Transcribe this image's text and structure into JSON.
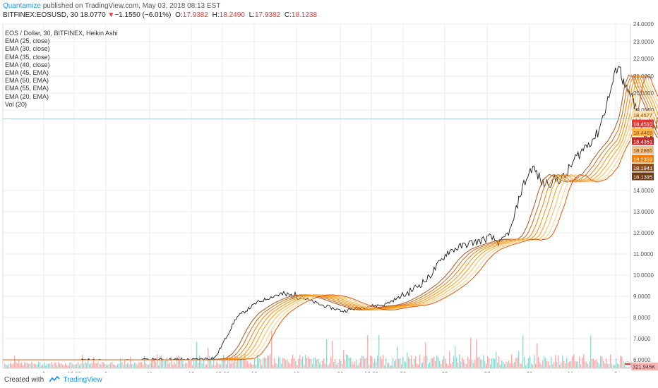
{
  "header": {
    "author": "Quantamize",
    "published": "published on TradingView.com, May 03, 2018 08:13 EST",
    "symbol": "BITFINEX:EOSUSD, 30",
    "last": "18.0770",
    "change_arrow": "▼",
    "change": "−1.1550 (−6.01%)",
    "o_label": "O:",
    "o_value": "17.9382",
    "h_label": "H:",
    "h_value": "18.2490",
    "l_label": "L:",
    "l_value": "17.9382",
    "c_label": "C:",
    "c_value": "18.1238"
  },
  "legend": [
    "EOS / Dollar, 30, BITFINEX, Heikin Ashi",
    "EMA (25, close)",
    "EMA (30, close)",
    "EMA (35, close)",
    "EMA (40, close)",
    "EMA (45, EMA)",
    "EMA (50, EMA)",
    "EMA (55, EMA)",
    "EMA (20, EMA)",
    "Vol (20)"
  ],
  "footer": {
    "created_with": "Created with",
    "brand": "TradingView"
  },
  "colors": {
    "up": "#26a69a",
    "down": "#ef5350",
    "ema_dark": "#8d3b0f",
    "ema_orange": "#f57c00",
    "ema_light": "#ffb74d",
    "price_line": "#4a8fa3"
  },
  "chart_data": {
    "type": "line",
    "title": "EOS / Dollar, 30, BITFINEX, Heikin Ashi",
    "x_ticks": [
      "6",
      "12:00",
      "9",
      "11",
      "13",
      "12:00",
      "16",
      "18",
      "20",
      "12:00",
      "23",
      "25",
      "27",
      "29",
      "May",
      "3"
    ],
    "y_ticks": [
      "24.0000",
      "23.0000",
      "22.0000",
      "21.0000",
      "20.0000",
      "19.0000",
      "14.0000",
      "13.0000",
      "12.0000",
      "11.0000",
      "10.0000",
      "9.0000",
      "8.0000",
      "7.0000",
      "6.0000"
    ],
    "ylim": [
      5,
      24
    ],
    "price_path": {
      "x": [
        0,
        2,
        4,
        5,
        6,
        7,
        8,
        9,
        10,
        11,
        12,
        13,
        14,
        15,
        16,
        17,
        18,
        19,
        20,
        21,
        22,
        22.5,
        23,
        23.5,
        24,
        24.5,
        25,
        25.5,
        26,
        26.5,
        27,
        27.5,
        28,
        28.5,
        29,
        29.5,
        30,
        30.5,
        31,
        31.5,
        32,
        32.5,
        33,
        33.5
      ],
      "values": [
        5.9,
        5.8,
        6.0,
        5.9,
        5.95,
        6.0,
        6.0,
        6.0,
        6.1,
        8.0,
        8.7,
        9.1,
        9.0,
        8.6,
        8.3,
        8.5,
        8.6,
        9.1,
        9.8,
        11.1,
        11.5,
        11.6,
        11.8,
        11.5,
        12.2,
        14.1,
        15.5,
        14.4,
        14.6,
        14.8,
        16.0,
        16.8,
        17.5,
        19.6,
        21.8,
        20.3,
        19.8,
        18.8,
        17.5,
        17.0,
        18.2,
        19.0,
        18.7,
        18.1
      ]
    },
    "series": [
      {
        "name": "EMA (20, EMA)",
        "lag": 0.8
      },
      {
        "name": "EMA (25, close)",
        "lag": 1.0
      },
      {
        "name": "EMA (30, close)",
        "lag": 1.2
      },
      {
        "name": "EMA (35, close)",
        "lag": 1.4
      },
      {
        "name": "EMA (40, close)",
        "lag": 1.6
      },
      {
        "name": "EMA (45, EMA)",
        "lag": 1.8
      },
      {
        "name": "EMA (50, EMA)",
        "lag": 2.0
      },
      {
        "name": "EMA (55, EMA)",
        "lag": 2.2
      }
    ],
    "price_labels": [
      "18.4577",
      "18.4510",
      "18.4465",
      "18.4351",
      "18.2865",
      "18.2359",
      "18.1941",
      "18.1395"
    ],
    "volume_label": "321.945K",
    "grid": true
  }
}
